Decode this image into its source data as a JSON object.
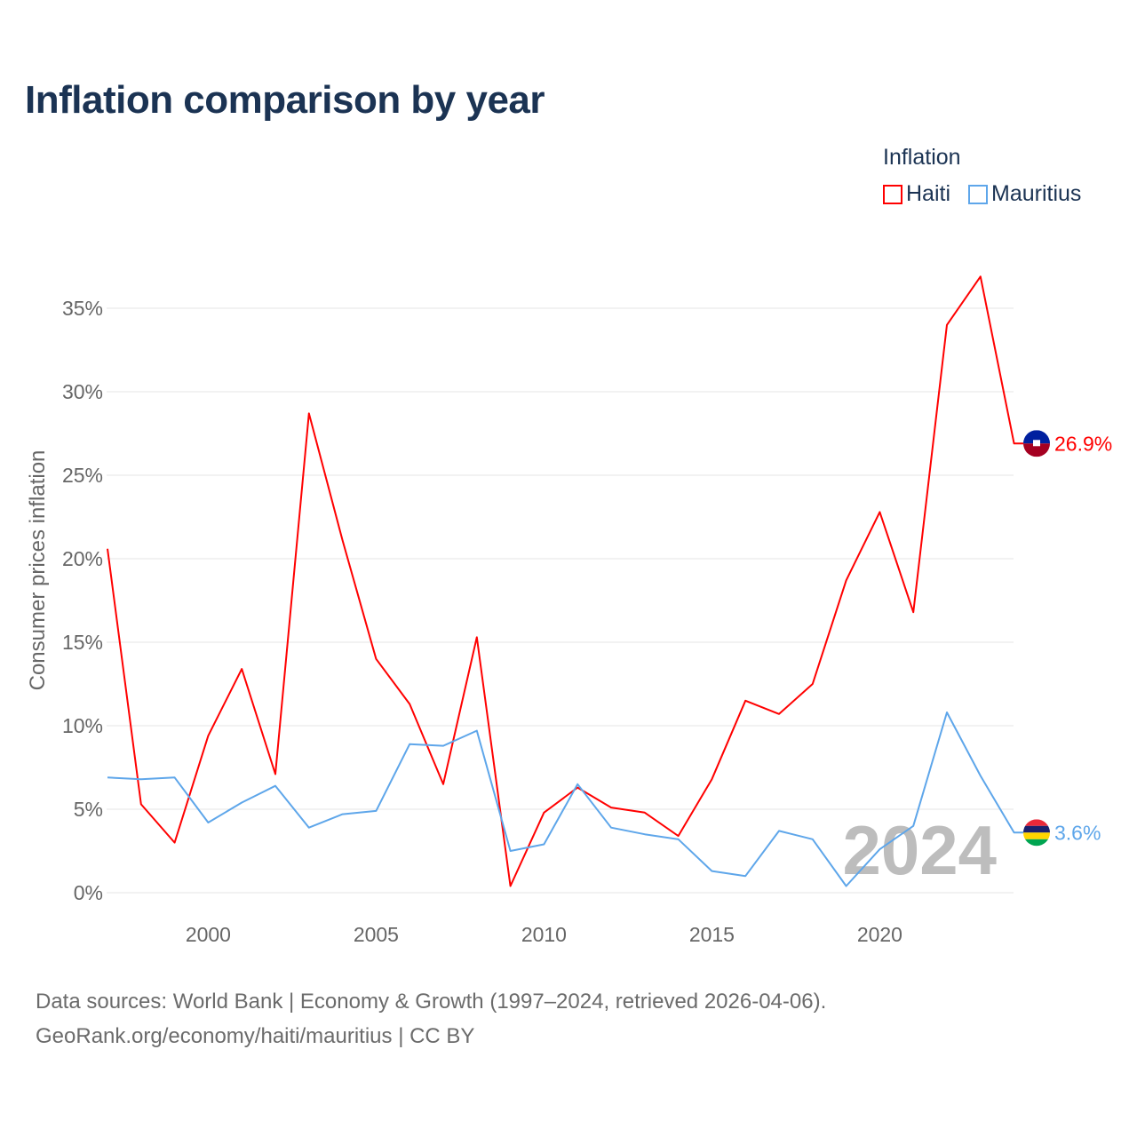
{
  "title": "Inflation comparison by year",
  "legend": {
    "title": "Inflation",
    "items": [
      {
        "label": "Haiti",
        "color": "#ff0000"
      },
      {
        "label": "Mauritius",
        "color": "#5ea6ea"
      }
    ]
  },
  "watermark_year": "2024",
  "footer": {
    "line1": "Data sources: World Bank | Economy & Growth (1997–2024, retrieved 2026-04-06).",
    "line2": "GeoRank.org/economy/haiti/mauritius | CC BY"
  },
  "chart_data": {
    "type": "line",
    "title": "Inflation comparison by year",
    "xlabel": "",
    "ylabel": "Consumer prices inflation",
    "x": [
      1997,
      1998,
      1999,
      2000,
      2001,
      2002,
      2003,
      2004,
      2005,
      2006,
      2007,
      2008,
      2009,
      2010,
      2011,
      2012,
      2013,
      2014,
      2015,
      2016,
      2017,
      2018,
      2019,
      2020,
      2021,
      2022,
      2023,
      2024
    ],
    "xlim": [
      1997,
      2024
    ],
    "ylim": [
      0,
      38
    ],
    "xticks": [
      2000,
      2005,
      2010,
      2015,
      2020
    ],
    "yticks": [
      0,
      5,
      10,
      15,
      20,
      25,
      30,
      35
    ],
    "ytick_labels": [
      "0%",
      "5%",
      "10%",
      "15%",
      "20%",
      "25%",
      "30%",
      "35%"
    ],
    "grid": true,
    "legend_position": "top-right",
    "series": [
      {
        "name": "Haiti",
        "color": "#ff0000",
        "end_label": "26.9%",
        "values": [
          20.6,
          5.3,
          3.0,
          9.4,
          13.4,
          7.1,
          28.7,
          21.1,
          14.0,
          11.3,
          6.5,
          15.3,
          0.4,
          4.8,
          6.3,
          5.1,
          4.8,
          3.4,
          6.8,
          11.5,
          10.7,
          12.5,
          18.7,
          22.8,
          16.8,
          34.0,
          36.9,
          26.9
        ]
      },
      {
        "name": "Mauritius",
        "color": "#5ea6ea",
        "end_label": "3.6%",
        "values": [
          6.9,
          6.8,
          6.9,
          4.2,
          5.4,
          6.4,
          3.9,
          4.7,
          4.9,
          8.9,
          8.8,
          9.7,
          2.5,
          2.9,
          6.5,
          3.9,
          3.5,
          3.2,
          1.3,
          1.0,
          3.7,
          3.2,
          0.4,
          2.6,
          4.0,
          10.8,
          7.0,
          3.6
        ]
      }
    ]
  }
}
